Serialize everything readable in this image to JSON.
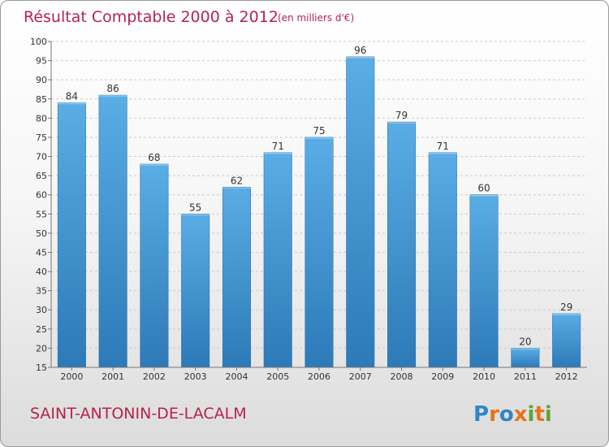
{
  "chart_data": {
    "type": "bar",
    "title": "Résultat Comptable 2000 à 2012",
    "subtitle": "(en milliers d'€)",
    "categories": [
      "2000",
      "2001",
      "2002",
      "2003",
      "2004",
      "2005",
      "2006",
      "2007",
      "2008",
      "2009",
      "2010",
      "2011",
      "2012"
    ],
    "values": [
      84,
      86,
      68,
      55,
      62,
      71,
      75,
      96,
      79,
      71,
      60,
      20,
      29
    ],
    "ylim": [
      15,
      100
    ],
    "yticks": [
      15,
      20,
      25,
      30,
      35,
      40,
      45,
      50,
      55,
      60,
      65,
      70,
      75,
      80,
      85,
      90,
      95,
      100
    ],
    "grid": true,
    "xlabel": "",
    "ylabel": "",
    "bar_color_top": "#5aade5",
    "bar_color_bottom": "#2c7ab8"
  },
  "footer": {
    "commune": "SAINT-ANTONIN-DE-LACALM"
  },
  "logo": {
    "text": "Proxiti",
    "letter_colors": [
      "#2e86c8",
      "#e8731b",
      "#2e86c8",
      "#e8731b",
      "#59a836",
      "#e8731b",
      "#59a836"
    ]
  }
}
